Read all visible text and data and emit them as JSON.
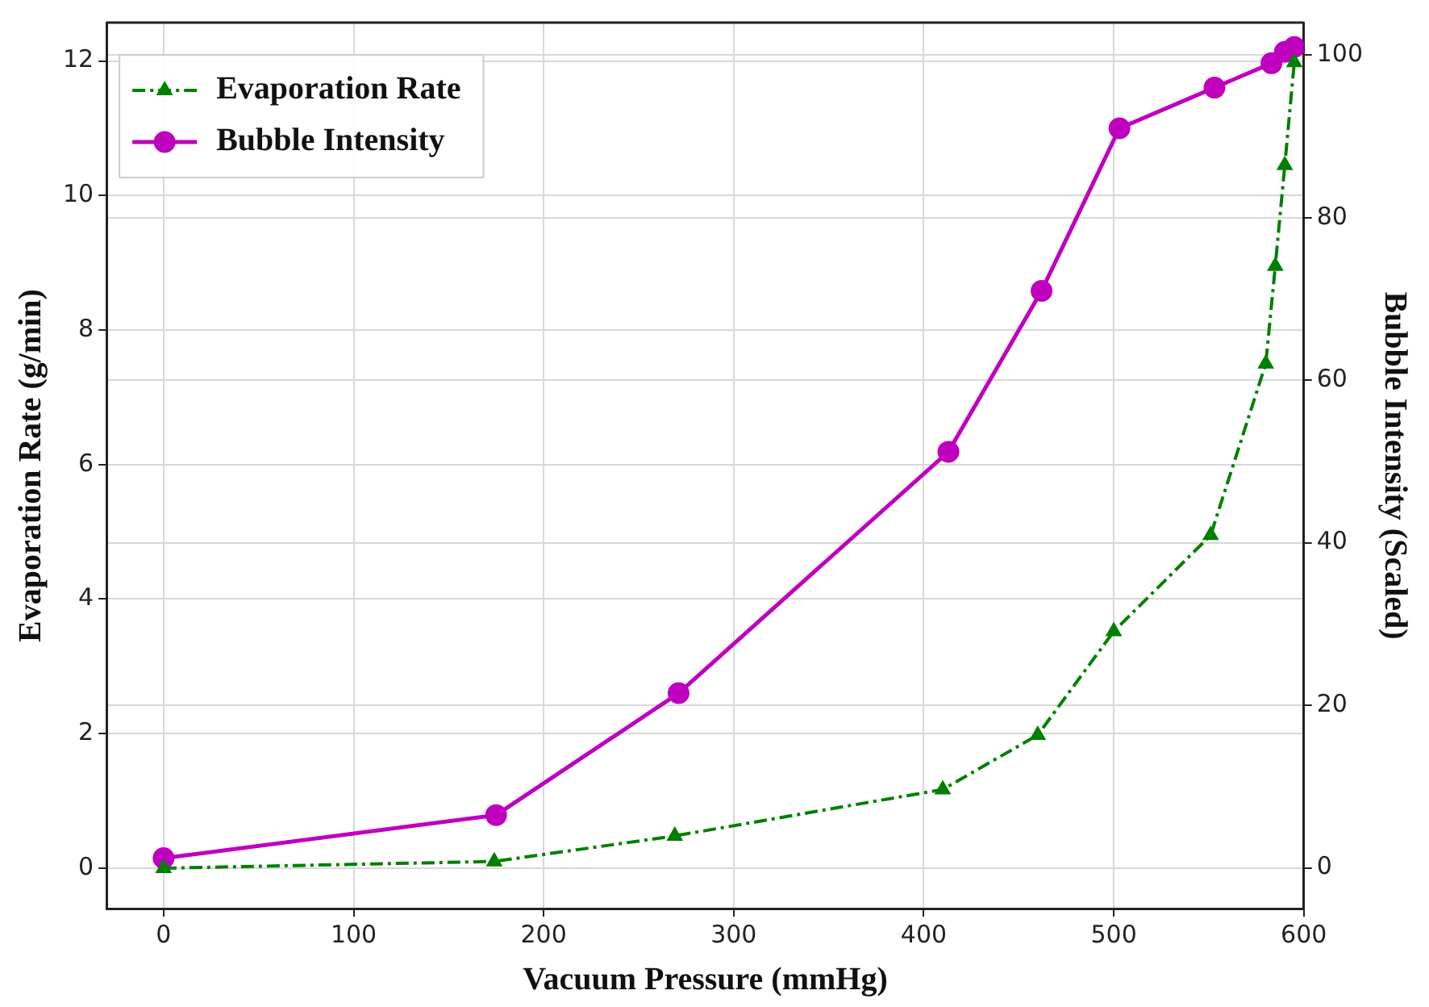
{
  "chart_data": {
    "type": "line",
    "xlabel": "Vacuum Pressure (mmHg)",
    "ylabel": "Evaporation Rate (g/min)",
    "y2label": "Bubble Intensity (Scaled)",
    "xlim": [
      -30,
      600
    ],
    "xticks": [
      0,
      100,
      200,
      300,
      400,
      500,
      600
    ],
    "ylim": [
      -0.6,
      12.57
    ],
    "yticks": [
      0,
      2,
      4,
      6,
      8,
      10,
      12
    ],
    "y2lim": [
      -5,
      104
    ],
    "y2ticks": [
      0,
      20,
      40,
      60,
      80,
      100
    ],
    "grid": true,
    "legend": "top left",
    "series": [
      {
        "name": "Evaporation Rate",
        "color": "#008000",
        "marker": "triangle",
        "line_style": "dashed",
        "x": [
          0,
          174,
          269,
          410,
          460,
          500,
          551,
          580,
          585,
          590,
          595
        ],
        "values": [
          0,
          0.1,
          0.48,
          1.17,
          1.98,
          3.52,
          4.95,
          7.5,
          8.95,
          10.45,
          11.98
        ]
      },
      {
        "name": "Bubble Intensity",
        "color": "#bf00bf",
        "marker": "circle",
        "line_style": "solid",
        "axis": "y2",
        "x": [
          0,
          175,
          271,
          413,
          462,
          503,
          553,
          583,
          590,
          595
        ],
        "values": [
          1.2,
          6.5,
          21.5,
          51.2,
          71,
          91,
          96,
          99,
          100.4,
          101
        ]
      }
    ]
  }
}
